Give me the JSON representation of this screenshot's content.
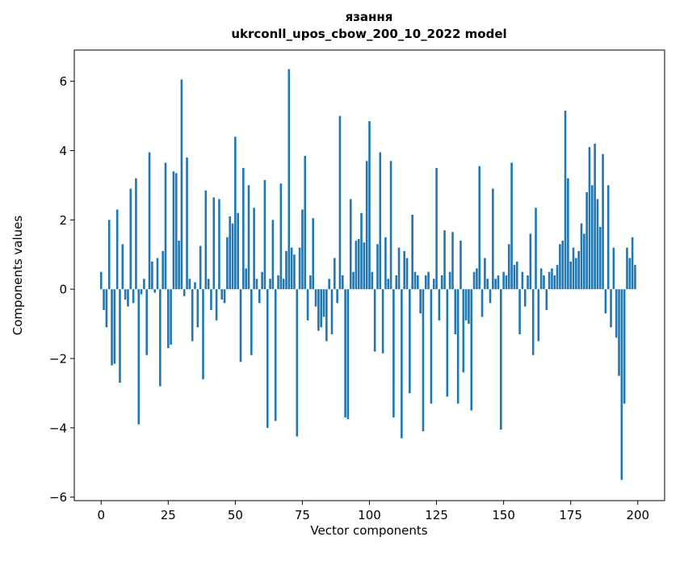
{
  "title": {
    "line1": "язання",
    "line2": "ukrconll_upos_cbow_200_10_2022 model"
  },
  "chart_data": {
    "type": "bar",
    "title": "язання\nukrconll_upos_cbow_200_10_2022 model",
    "xlabel": "Vector components",
    "ylabel": "Components values",
    "xlim": [
      -10,
      210
    ],
    "ylim": [
      -6.1,
      6.9
    ],
    "xticks": [
      0,
      25,
      50,
      75,
      100,
      125,
      150,
      175,
      200
    ],
    "yticks": [
      -6,
      -4,
      -2,
      0,
      2,
      4,
      6
    ],
    "bar_color": "#1f77b4",
    "values": [
      0.5,
      -0.6,
      -1.1,
      2.0,
      -2.2,
      -2.15,
      2.3,
      -2.7,
      1.3,
      -0.3,
      -0.5,
      2.9,
      -0.4,
      3.2,
      -3.9,
      -0.15,
      0.3,
      -1.9,
      3.95,
      0.8,
      -0.1,
      0.9,
      -2.8,
      1.1,
      3.65,
      -1.7,
      -1.6,
      3.4,
      3.35,
      1.4,
      6.05,
      -0.2,
      3.8,
      0.3,
      -1.5,
      0.2,
      -1.1,
      1.25,
      -2.6,
      2.85,
      0.3,
      -0.6,
      2.65,
      -0.9,
      2.6,
      -0.3,
      -0.4,
      1.5,
      2.1,
      1.9,
      4.4,
      2.2,
      -2.1,
      3.5,
      0.6,
      3.0,
      -1.9,
      2.35,
      0.3,
      -0.4,
      0.5,
      3.15,
      -4.0,
      0.3,
      2.0,
      -3.8,
      0.4,
      3.05,
      0.3,
      1.1,
      6.35,
      1.2,
      1.0,
      -4.25,
      1.2,
      2.3,
      3.85,
      -0.9,
      0.4,
      2.05,
      -0.5,
      -1.2,
      -1.1,
      -0.8,
      -1.5,
      0.3,
      -1.3,
      0.9,
      -0.4,
      5.0,
      0.4,
      -3.7,
      -3.75,
      2.6,
      0.5,
      1.4,
      1.45,
      2.2,
      1.35,
      3.7,
      4.85,
      0.5,
      -1.8,
      1.3,
      3.95,
      -1.85,
      1.5,
      0.3,
      3.7,
      -3.7,
      0.4,
      1.2,
      -4.3,
      1.1,
      0.9,
      -3.0,
      2.15,
      0.5,
      0.4,
      -0.7,
      -4.1,
      0.4,
      0.5,
      -3.3,
      0.3,
      3.5,
      -0.9,
      0.4,
      1.7,
      -3.1,
      0.5,
      1.65,
      -1.3,
      -3.3,
      1.4,
      -2.4,
      -0.9,
      -1.0,
      -3.5,
      0.5,
      0.6,
      3.55,
      -0.8,
      0.9,
      0.3,
      -0.4,
      2.9,
      0.3,
      0.4,
      -4.05,
      0.5,
      0.4,
      1.3,
      3.65,
      0.7,
      0.8,
      -1.3,
      0.5,
      -0.5,
      0.4,
      1.6,
      -1.9,
      2.35,
      -1.5,
      0.6,
      0.4,
      -0.6,
      0.5,
      0.6,
      0.4,
      0.7,
      1.3,
      1.4,
      5.15,
      3.2,
      0.8,
      1.2,
      0.9,
      1.1,
      1.9,
      1.6,
      2.8,
      4.1,
      3.0,
      4.2,
      2.6,
      1.8,
      3.9,
      -0.7,
      3.0,
      -1.1,
      1.2,
      -1.4,
      -2.5,
      -5.5,
      -3.3,
      1.2,
      0.9,
      1.5,
      0.7
    ]
  }
}
